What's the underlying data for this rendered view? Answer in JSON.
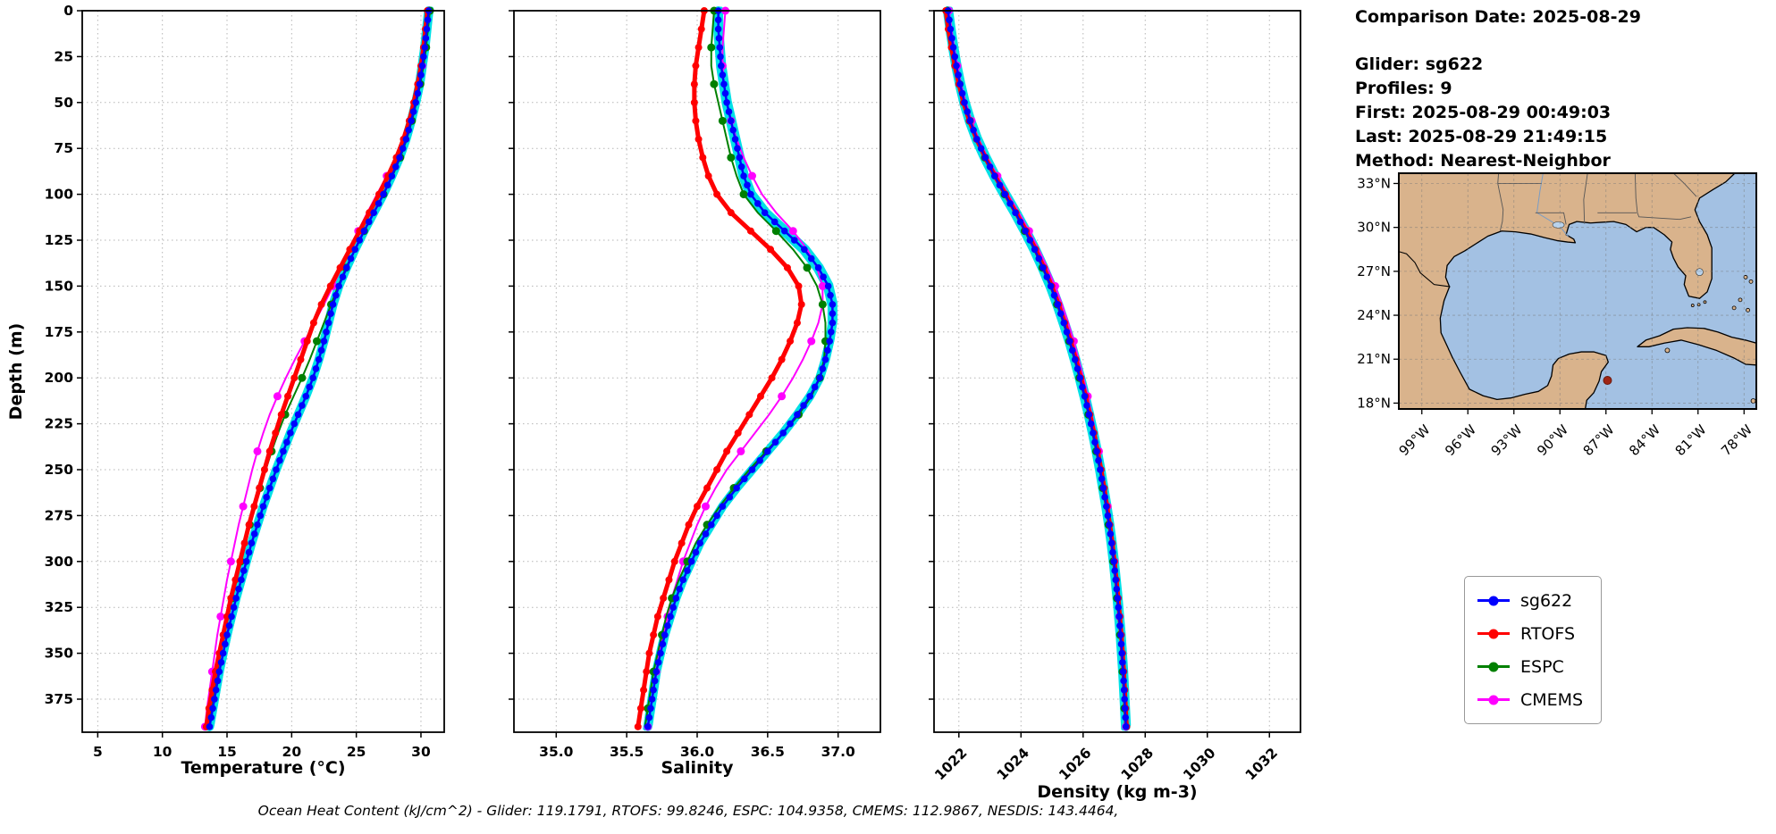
{
  "info_panel": {
    "comparison_date": "Comparison Date: 2025-08-29",
    "glider": "Glider: sg622",
    "profiles": "Profiles: 9",
    "first": "First: 2025-08-29 00:49:03",
    "last": "Last: 2025-08-29 21:49:15",
    "method": "Method: Nearest-Neighbor"
  },
  "legend": {
    "items": [
      {
        "label": "sg622",
        "color": "#0000ff"
      },
      {
        "label": "RTOFS",
        "color": "#ff0000"
      },
      {
        "label": "ESPC",
        "color": "#008000"
      },
      {
        "label": "CMEMS",
        "color": "#ff00ff"
      }
    ]
  },
  "caption": "Ocean Heat Content (kJ/cm^2) - Glider: 119.1791,  RTOFS: 99.8246,  ESPC: 104.9358,  CMEMS: 112.9867,  NESDIS: 143.4464,",
  "map": {
    "lat_tick_labels": [
      "33°N",
      "30°N",
      "27°N",
      "24°N",
      "21°N",
      "18°N"
    ],
    "lat_tick_values": [
      33,
      30,
      27,
      24,
      21,
      18
    ],
    "lon_tick_labels": [
      "99°W",
      "96°W",
      "93°W",
      "90°W",
      "87°W",
      "84°W",
      "81°W",
      "78°W"
    ],
    "lon_tick_values": [
      99,
      96,
      93,
      90,
      87,
      84,
      81,
      78
    ],
    "land_color": "#d9b38c",
    "ocean_color": "#a3c1e3",
    "lake_color": "#b9d3ec",
    "glider_dot": {
      "lon_w": 86.9,
      "lat_n": 19.55,
      "color": "#a02515"
    }
  },
  "chart_data": {
    "type": "line",
    "profile_orientation": "depth-vertical",
    "ylabel": "Depth (m)",
    "yticks": [
      0,
      25,
      50,
      75,
      100,
      125,
      150,
      175,
      200,
      225,
      250,
      275,
      300,
      325,
      350,
      375
    ],
    "yrange": [
      0,
      393
    ],
    "raw_profile_color": "#00e0e6",
    "grid": true,
    "depths": [
      0,
      10,
      20,
      30,
      40,
      50,
      60,
      70,
      80,
      90,
      100,
      110,
      120,
      130,
      140,
      150,
      160,
      170,
      180,
      190,
      200,
      210,
      220,
      230,
      240,
      250,
      260,
      270,
      280,
      290,
      300,
      310,
      320,
      330,
      340,
      350,
      360,
      370,
      380,
      390
    ],
    "ohc": {
      "glider": 119.1791,
      "rtofs": 99.8246,
      "espc": 104.9358,
      "cmems": 112.9867,
      "nesdis": 143.4464
    },
    "panels": [
      {
        "id": "temperature",
        "xlabel": "Temperature (°C)",
        "xticks": [
          5,
          10,
          15,
          20,
          25,
          30
        ],
        "xtick_labels": [
          "5",
          "10",
          "15",
          "20",
          "25",
          "30"
        ],
        "xrange": [
          3.8,
          31.8
        ],
        "series": [
          {
            "name": "CMEMS",
            "color": "#ff00ff",
            "lw": 2,
            "marker_every": 3,
            "mr": 4.5,
            "values": [
              30.6,
              30.45,
              30.3,
              30.1,
              29.85,
              29.55,
              29.15,
              28.65,
              28.05,
              27.35,
              26.6,
              25.85,
              25.15,
              24.5,
              23.85,
              23.2,
              22.5,
              21.75,
              21.0,
              20.25,
              19.55,
              18.9,
              18.3,
              17.8,
              17.35,
              16.95,
              16.6,
              16.25,
              15.9,
              15.6,
              15.3,
              15.0,
              14.75,
              14.5,
              14.25,
              14.05,
              13.85,
              13.65,
              13.45,
              13.3
            ]
          },
          {
            "name": "ESPC",
            "color": "#008000",
            "lw": 2,
            "marker_every": 2,
            "mr": 4.5,
            "values": [
              30.7,
              30.55,
              30.4,
              30.2,
              29.95,
              29.65,
              29.3,
              28.9,
              28.4,
              27.8,
              27.1,
              26.35,
              25.6,
              24.9,
              24.2,
              23.6,
              23.05,
              22.5,
              21.95,
              21.4,
              20.8,
              20.15,
              19.5,
              18.95,
              18.45,
              18.0,
              17.55,
              17.15,
              16.75,
              16.4,
              16.05,
              15.7,
              15.4,
              15.1,
              14.8,
              14.5,
              14.25,
              14.0,
              13.75,
              13.5
            ]
          },
          {
            "name": "RTOFS",
            "color": "#ff0000",
            "lw": 5,
            "marker_every": 1,
            "mr": 4,
            "values": [
              30.5,
              30.35,
              30.2,
              30.0,
              29.75,
              29.45,
              29.1,
              28.65,
              28.1,
              27.45,
              26.75,
              26.0,
              25.25,
              24.5,
              23.75,
              23.0,
              22.3,
              21.7,
              21.2,
              20.7,
              20.2,
              19.7,
              19.2,
              18.75,
              18.3,
              17.9,
              17.5,
              17.1,
              16.7,
              16.35,
              16.0,
              15.65,
              15.3,
              15.0,
              14.7,
              14.4,
              14.1,
              13.85,
              13.6,
              13.4
            ]
          },
          {
            "name": "sg622",
            "color": "#0000ff",
            "lw": 2.5,
            "marker_every": 1,
            "mr": 3.8,
            "dense": true,
            "halo": true,
            "values": [
              30.6,
              30.45,
              30.3,
              30.1,
              29.9,
              29.6,
              29.25,
              28.85,
              28.35,
              27.75,
              27.1,
              26.35,
              25.6,
              24.9,
              24.25,
              23.65,
              23.2,
              22.85,
              22.5,
              22.1,
              21.65,
              21.1,
              20.5,
              19.9,
              19.35,
              18.8,
              18.3,
              17.8,
              17.35,
              16.9,
              16.5,
              16.1,
              15.7,
              15.35,
              15.0,
              14.7,
              14.4,
              14.15,
              13.9,
              13.65
            ]
          }
        ]
      },
      {
        "id": "salinity",
        "xlabel": "Salinity",
        "xticks": [
          35.0,
          35.5,
          36.0,
          36.5,
          37.0
        ],
        "xtick_labels": [
          "35.0",
          "35.5",
          "36.0",
          "36.5",
          "37.0"
        ],
        "xrange": [
          34.7,
          37.3
        ],
        "series": [
          {
            "name": "CMEMS",
            "color": "#ff00ff",
            "lw": 2,
            "marker_every": 3,
            "mr": 4.5,
            "values": [
              36.2,
              36.19,
              36.18,
              36.18,
              36.19,
              36.21,
              36.24,
              36.28,
              36.33,
              36.39,
              36.46,
              36.56,
              36.68,
              36.78,
              36.85,
              36.89,
              36.89,
              36.86,
              36.81,
              36.75,
              36.68,
              36.6,
              36.51,
              36.41,
              36.31,
              36.21,
              36.13,
              36.06,
              36.0,
              35.95,
              35.9,
              35.86,
              35.82,
              35.79,
              35.76,
              35.73,
              35.71,
              35.69,
              35.67,
              35.65
            ]
          },
          {
            "name": "ESPC",
            "color": "#008000",
            "lw": 2,
            "marker_every": 2,
            "mr": 4.5,
            "values": [
              36.12,
              36.11,
              36.1,
              36.1,
              36.12,
              36.15,
              36.18,
              36.21,
              36.24,
              36.28,
              36.33,
              36.43,
              36.56,
              36.68,
              36.78,
              36.85,
              36.89,
              36.91,
              36.91,
              36.9,
              36.87,
              36.81,
              36.72,
              36.61,
              36.49,
              36.37,
              36.26,
              36.16,
              36.07,
              35.99,
              35.93,
              35.87,
              35.82,
              35.78,
              35.75,
              35.72,
              35.69,
              35.67,
              35.65,
              35.63
            ]
          },
          {
            "name": "RTOFS",
            "color": "#ff0000",
            "lw": 5,
            "marker_every": 1,
            "mr": 4,
            "values": [
              36.05,
              36.03,
              36.01,
              35.99,
              35.98,
              35.98,
              35.99,
              36.01,
              36.04,
              36.08,
              36.14,
              36.24,
              36.38,
              36.52,
              36.64,
              36.72,
              36.74,
              36.71,
              36.66,
              36.6,
              36.53,
              36.45,
              36.37,
              36.29,
              36.21,
              36.14,
              36.07,
              36.0,
              35.94,
              35.89,
              35.84,
              35.8,
              35.76,
              35.72,
              35.69,
              35.66,
              35.64,
              35.62,
              35.6,
              35.58
            ]
          },
          {
            "name": "sg622",
            "color": "#0000ff",
            "lw": 2.5,
            "marker_every": 1,
            "mr": 3.8,
            "dense": true,
            "halo": true,
            "values": [
              36.15,
              36.15,
              36.16,
              36.17,
              36.19,
              36.21,
              36.24,
              36.27,
              36.3,
              36.33,
              36.38,
              36.48,
              36.62,
              36.76,
              36.86,
              36.93,
              36.96,
              36.96,
              36.94,
              36.91,
              36.87,
              36.8,
              36.71,
              36.61,
              36.5,
              36.39,
              36.28,
              36.18,
              36.1,
              36.02,
              35.96,
              35.9,
              35.85,
              35.81,
              35.77,
              35.74,
              35.71,
              35.69,
              35.67,
              35.65
            ]
          }
        ]
      },
      {
        "id": "density",
        "xlabel": "Density (kg m-3)",
        "xticks": [
          1022,
          1024,
          1026,
          1028,
          1030,
          1032
        ],
        "xtick_labels": [
          "1022",
          "1024",
          "1026",
          "1028",
          "1030",
          "1032"
        ],
        "xrange": [
          1021.2,
          1033.0
        ],
        "rotate_xticks": true,
        "series": [
          {
            "name": "CMEMS",
            "color": "#ff00ff",
            "lw": 2,
            "marker_every": 3,
            "mr": 4.5,
            "values": [
              1021.68,
              1021.76,
              1021.85,
              1021.95,
              1022.07,
              1022.22,
              1022.41,
              1022.64,
              1022.92,
              1023.24,
              1023.58,
              1023.93,
              1024.26,
              1024.57,
              1024.85,
              1025.1,
              1025.32,
              1025.52,
              1025.7,
              1025.86,
              1026.01,
              1026.15,
              1026.28,
              1026.4,
              1026.51,
              1026.61,
              1026.7,
              1026.79,
              1026.87,
              1026.94,
              1027.01,
              1027.07,
              1027.12,
              1027.17,
              1027.21,
              1027.25,
              1027.29,
              1027.32,
              1027.35,
              1027.38
            ]
          },
          {
            "name": "ESPC",
            "color": "#008000",
            "lw": 2,
            "marker_every": 2,
            "mr": 4.5,
            "values": [
              1021.62,
              1021.7,
              1021.79,
              1021.9,
              1022.02,
              1022.16,
              1022.35,
              1022.57,
              1022.84,
              1023.14,
              1023.47,
              1023.8,
              1024.12,
              1024.42,
              1024.69,
              1024.94,
              1025.16,
              1025.36,
              1025.55,
              1025.72,
              1025.88,
              1026.03,
              1026.17,
              1026.3,
              1026.42,
              1026.53,
              1026.63,
              1026.73,
              1026.82,
              1026.9,
              1026.97,
              1027.03,
              1027.09,
              1027.14,
              1027.19,
              1027.23,
              1027.27,
              1027.3,
              1027.33,
              1027.36
            ]
          },
          {
            "name": "RTOFS",
            "color": "#ff0000",
            "lw": 5,
            "marker_every": 1,
            "mr": 4,
            "values": [
              1021.58,
              1021.66,
              1021.76,
              1021.87,
              1022.0,
              1022.15,
              1022.34,
              1022.57,
              1022.85,
              1023.16,
              1023.5,
              1023.84,
              1024.17,
              1024.47,
              1024.74,
              1024.99,
              1025.21,
              1025.41,
              1025.6,
              1025.77,
              1025.93,
              1026.08,
              1026.22,
              1026.35,
              1026.47,
              1026.58,
              1026.68,
              1026.77,
              1026.86,
              1026.94,
              1027.01,
              1027.07,
              1027.13,
              1027.18,
              1027.23,
              1027.27,
              1027.31,
              1027.34,
              1027.37,
              1027.4
            ]
          },
          {
            "name": "sg622",
            "color": "#0000ff",
            "lw": 2.5,
            "marker_every": 1,
            "mr": 3.8,
            "dense": true,
            "halo": true,
            "values": [
              1021.65,
              1021.73,
              1021.82,
              1021.92,
              1022.04,
              1022.18,
              1022.36,
              1022.58,
              1022.85,
              1023.15,
              1023.48,
              1023.82,
              1024.14,
              1024.44,
              1024.71,
              1024.96,
              1025.18,
              1025.38,
              1025.57,
              1025.74,
              1025.9,
              1026.05,
              1026.19,
              1026.32,
              1026.44,
              1026.55,
              1026.65,
              1026.75,
              1026.84,
              1026.92,
              1026.99,
              1027.05,
              1027.11,
              1027.16,
              1027.21,
              1027.25,
              1027.29,
              1027.32,
              1027.35,
              1027.38
            ]
          }
        ]
      }
    ]
  }
}
